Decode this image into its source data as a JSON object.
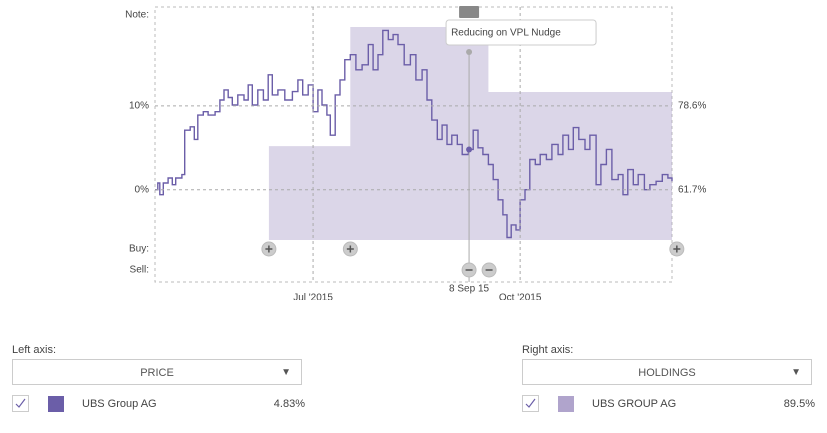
{
  "chart_data": {
    "type": "line",
    "row_labels": [
      "Note:",
      "Buy:",
      "Sell:"
    ],
    "xlim": [
      4.71,
      12.2
    ],
    "xticks": [
      {
        "value": 7.0,
        "label": "Jul '2015"
      },
      {
        "value": 10.0,
        "label": "Oct '2015"
      }
    ],
    "ylim": [
      -6,
      20
    ],
    "yticks": [
      {
        "value": 0,
        "label": "0%"
      },
      {
        "value": 10,
        "label": "10%"
      }
    ],
    "y2lim": [
      51.58,
      95.5
    ],
    "y2ticks": [
      {
        "value": 61.7,
        "label": "61.7%"
      },
      {
        "value": 78.6,
        "label": "78.6%"
      }
    ],
    "grid": true,
    "series": [
      {
        "name": "UBS Group AG",
        "color": "#6b5ea8",
        "axis": "y",
        "step": true,
        "x": [
          4.71,
          4.75,
          4.78,
          4.83,
          4.9,
          4.96,
          5.01,
          5.1,
          5.14,
          5.22,
          5.28,
          5.33,
          5.41,
          5.48,
          5.58,
          5.65,
          5.71,
          5.77,
          5.83,
          5.91,
          6.0,
          6.06,
          6.12,
          6.2,
          6.28,
          6.35,
          6.41,
          6.49,
          6.59,
          6.7,
          6.78,
          6.85,
          6.93,
          7.0,
          7.07,
          7.13,
          7.2,
          7.25,
          7.32,
          7.39,
          7.46,
          7.54,
          7.62,
          7.71,
          7.8,
          7.87,
          7.94,
          8.01,
          8.09,
          8.16,
          8.23,
          8.32,
          8.41,
          8.49,
          8.58,
          8.65,
          8.72,
          8.8,
          8.87,
          8.94,
          9.01,
          9.09,
          9.16,
          9.25,
          9.32,
          9.39,
          9.46,
          9.54,
          9.61,
          9.68,
          9.75,
          9.81,
          9.87,
          9.94,
          10.0,
          10.07,
          10.14,
          10.22,
          10.29,
          10.38,
          10.46,
          10.55,
          10.62,
          10.7,
          10.77,
          10.85,
          10.94,
          11.01,
          11.1,
          11.17,
          11.25,
          11.33,
          11.42,
          11.49,
          11.56,
          11.64,
          11.71,
          11.8,
          11.88,
          11.97,
          12.06,
          12.14,
          12.2
        ],
        "values": [
          0,
          0.8,
          -0.6,
          0.8,
          1.4,
          0.6,
          1.4,
          1.8,
          7.1,
          7.5,
          6,
          8.9,
          9.3,
          8.9,
          9.3,
          10.7,
          11.9,
          11,
          10.1,
          11.3,
          10.7,
          12.5,
          10.1,
          11.9,
          10.7,
          13.7,
          11.3,
          11.9,
          10.7,
          11.7,
          13.1,
          11.3,
          12.5,
          9.3,
          11.9,
          10.1,
          8.9,
          6.5,
          11.3,
          13.1,
          15.5,
          16.1,
          14.3,
          14.9,
          17.3,
          14.3,
          16.1,
          19,
          17.9,
          18.5,
          17.3,
          14.9,
          16.1,
          13.1,
          14.3,
          10.7,
          8.3,
          6,
          7.7,
          5.4,
          6.5,
          5.4,
          4.2,
          4.8,
          7.1,
          5,
          4.2,
          3,
          1.2,
          -1.2,
          -3,
          -5.7,
          -4.2,
          -4.8,
          -1.2,
          0,
          3.6,
          3,
          4.2,
          3.6,
          5.4,
          4.2,
          6.5,
          4.8,
          7.4,
          6,
          4.8,
          6.5,
          0.6,
          3,
          4.8,
          1.2,
          1.8,
          -0.6,
          2.4,
          0.6,
          1.8,
          0,
          0.6,
          1,
          1.8,
          1.4,
          1
        ]
      },
      {
        "name": "UBS GROUP AG",
        "color": "#b0a4cc",
        "axis": "y2",
        "step": true,
        "area": true,
        "x": [
          6.36,
          7.54,
          9.54,
          12.2
        ],
        "values": [
          70.5,
          94.5,
          81.4,
          81.4
        ]
      }
    ],
    "buy_x": [
      6.36,
      7.54,
      12.27
    ],
    "sell_x": [
      9.26,
      9.55
    ],
    "marker": {
      "x": 9.26,
      "value": 4.8,
      "label": "8 Sep 15",
      "note": "Reducing on VPL Nudge"
    }
  },
  "controls": {
    "left": {
      "label": "Left axis:",
      "dropdown": "PRICE",
      "series": "UBS Group AG",
      "value": "4.83%"
    },
    "right": {
      "label": "Right axis:",
      "dropdown": "HOLDINGS",
      "series": "UBS GROUP AG",
      "value": "89.5%"
    }
  }
}
